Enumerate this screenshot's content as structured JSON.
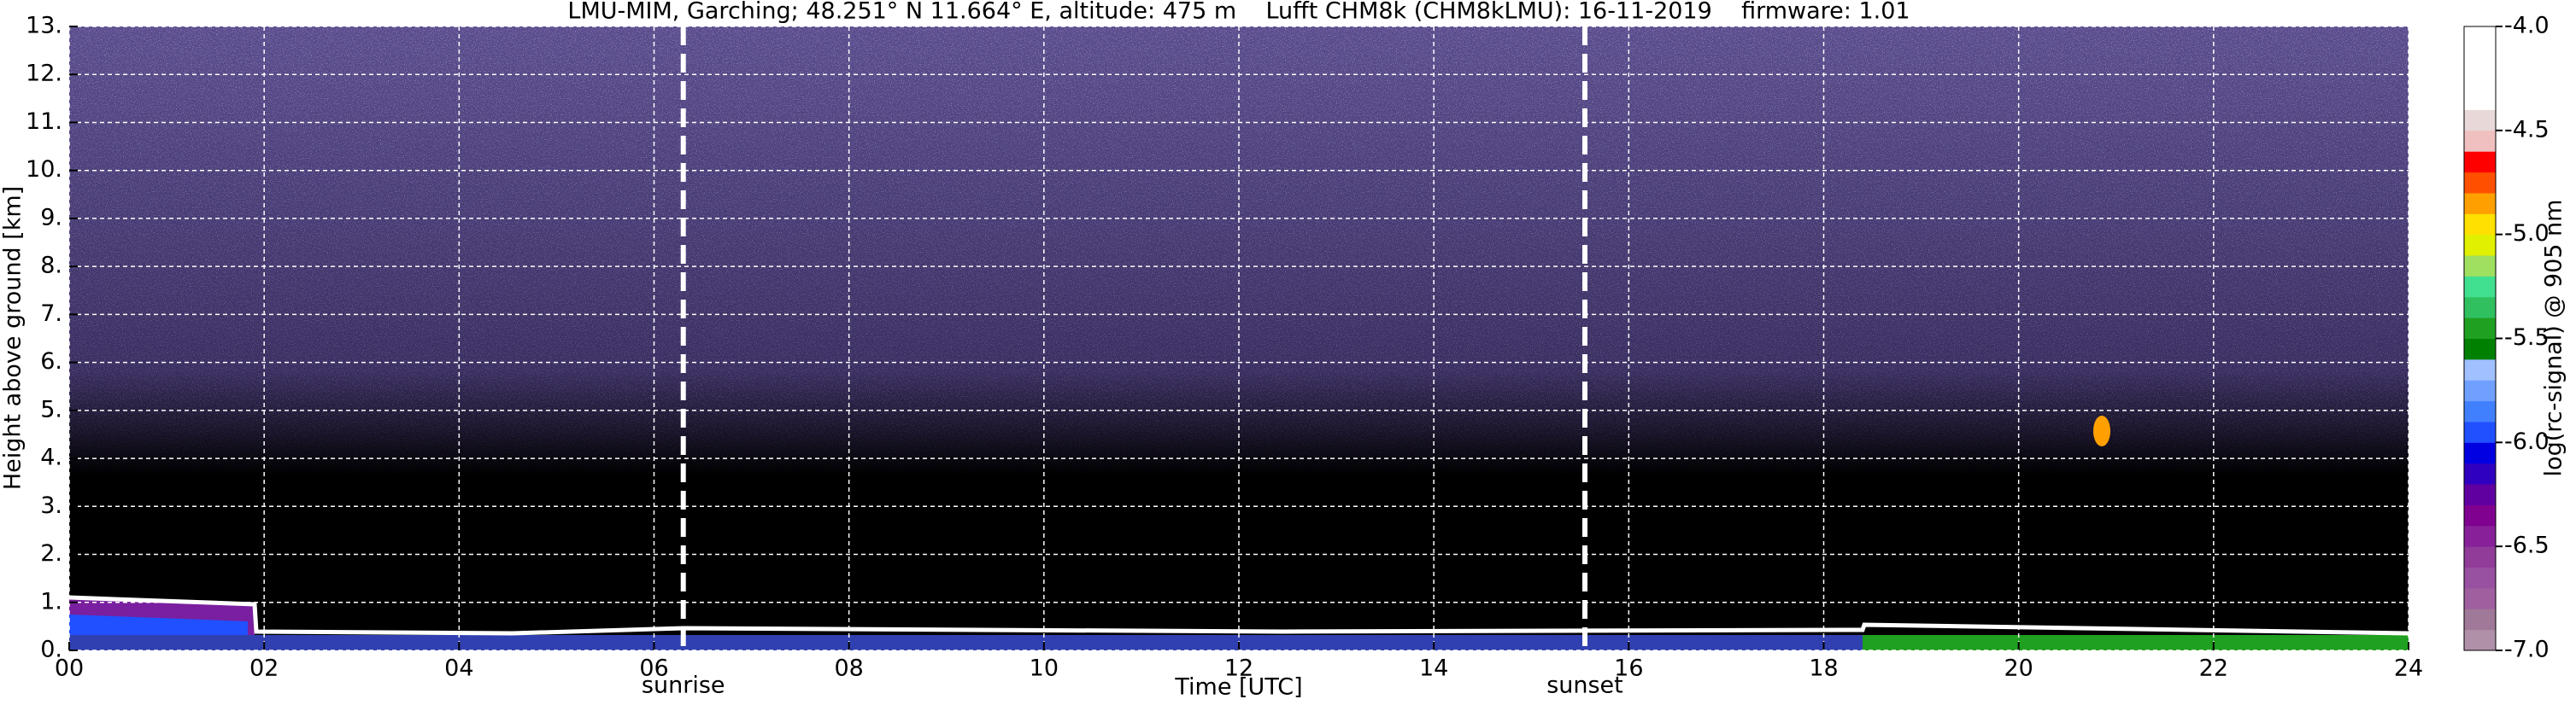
{
  "chart_data": {
    "type": "heatmap",
    "title": "LMU-MIM, Garching; 48.251° N 11.664° E, altitude: 475 m    Lufft CHM8k (CHM8kLMU): 16-11-2019    firmware: 1.01",
    "xlabel": "Time [UTC]",
    "ylabel": "Height above ground [km]",
    "xlim": [
      0,
      24
    ],
    "xticks": [
      {
        "value": 0,
        "label": "00"
      },
      {
        "value": 2,
        "label": "02"
      },
      {
        "value": 4,
        "label": "04"
      },
      {
        "value": 6,
        "label": "06"
      },
      {
        "value": 8,
        "label": "08"
      },
      10,
      12,
      14,
      16,
      18,
      20,
      22,
      24
    ],
    "ylim": [
      0,
      13
    ],
    "yticks": [
      {
        "value": 0,
        "label": "0."
      },
      {
        "value": 1,
        "label": "1."
      },
      {
        "value": 2,
        "label": "2."
      },
      {
        "value": 3,
        "label": "3."
      },
      {
        "value": 4,
        "label": "4."
      },
      {
        "value": 5,
        "label": "5."
      },
      {
        "value": 6,
        "label": "6."
      },
      {
        "value": 7,
        "label": "7."
      },
      {
        "value": 8,
        "label": "8."
      },
      {
        "value": 9,
        "label": "9."
      },
      {
        "value": 10,
        "label": "10."
      },
      {
        "value": 11,
        "label": "11."
      },
      {
        "value": 12,
        "label": "12."
      },
      {
        "value": 13,
        "label": "13."
      }
    ],
    "grid": true,
    "grid_color": "#ffffff",
    "colorbar": {
      "label": "log(rc-signal) @ 905 nm",
      "lim": [
        -7,
        -4
      ],
      "ticks": [
        {
          "value": -4,
          "label": "-4.0"
        },
        {
          "value": -4.5,
          "label": "-4.5"
        },
        {
          "value": -5,
          "label": "-5.0"
        },
        {
          "value": -5.5,
          "label": "-5.5"
        },
        {
          "value": -6,
          "label": "-6.0"
        },
        {
          "value": -6.5,
          "label": "-6.5"
        },
        {
          "value": -7,
          "label": "-7.0"
        }
      ],
      "colors": [
        "#b090a8",
        "#a07898",
        "#a060a0",
        "#9850a0",
        "#903c98",
        "#88209a",
        "#800090",
        "#6000a0",
        "#3000c0",
        "#0000e0",
        "#2050ff",
        "#4080ff",
        "#70a0ff",
        "#a0c0ff",
        "#008000",
        "#20a020",
        "#30c060",
        "#40e090",
        "#a0e060",
        "#e0f000",
        "#ffe000",
        "#ffa000",
        "#ff5000",
        "#ff0000",
        "#f0c0c0",
        "#e8d8d8",
        "#ffffff",
        "#ffffff",
        "#ffffff",
        "#ffffff"
      ]
    },
    "annotations": [
      {
        "x": 6.3,
        "label": "sunrise"
      },
      {
        "x": 15.55,
        "label": "sunset"
      }
    ]
  }
}
